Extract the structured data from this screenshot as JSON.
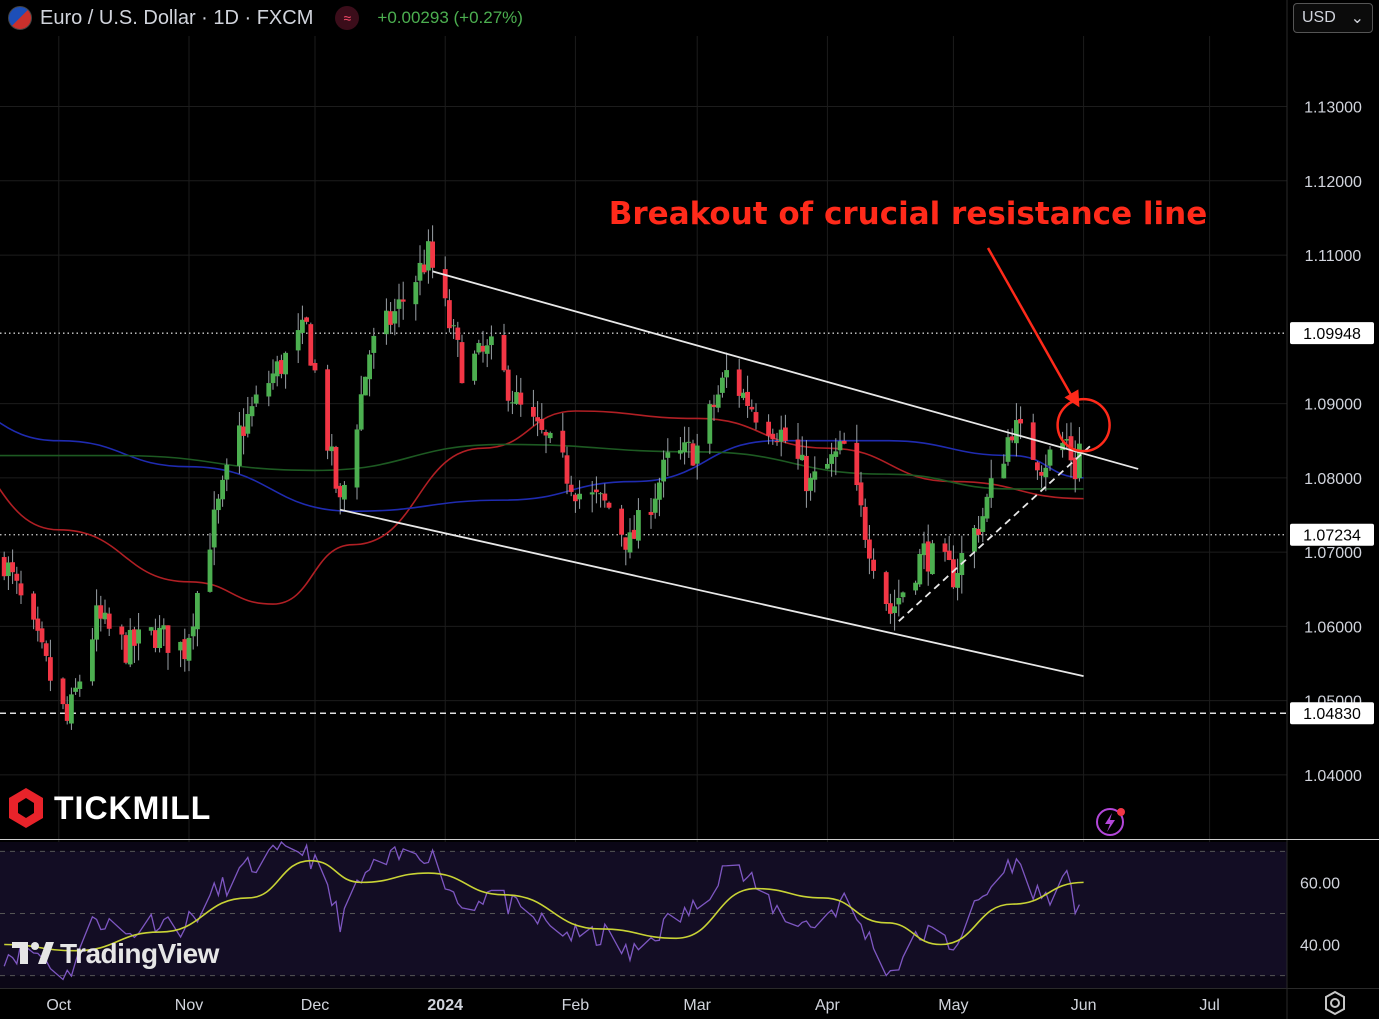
{
  "header": {
    "symbol": "Euro / U.S. Dollar · 1D · FXCM",
    "change": "+0.00293 (+0.27%)",
    "indicator_icon": "approx-icon"
  },
  "currency_selector": {
    "value": "USD",
    "arrow": "⌄"
  },
  "logos": {
    "tickmill": "TICKMILL",
    "tradingview": "TradingView"
  },
  "colors": {
    "up": "#4caf50",
    "down": "#f23645",
    "ma_red": "#b01f24",
    "ma_blue": "#1f2bb0",
    "ma_green": "#1d5a22",
    "rsi": "#7e57c2",
    "rsi_ma": "#c9d335",
    "annotation": "#ff2a1a"
  },
  "chart_data": [
    {
      "type": "candlestick",
      "title": "Euro / U.S. Dollar · 1D · FXCM",
      "xlabel": "",
      "ylabel": "",
      "x_ticks": [
        "Oct",
        "Nov",
        "Dec",
        "2024",
        "Feb",
        "Mar",
        "Apr",
        "May",
        "Jun",
        "Jul"
      ],
      "y_ticks": [
        "1.13000",
        "1.12000",
        "1.11000",
        "1.09000",
        "1.08000",
        "1.07000",
        "1.06000",
        "1.05000",
        "1.04000"
      ],
      "ylim": [
        1.0315,
        1.1395
      ],
      "price_labels": [
        "1.09948",
        "1.07234",
        "1.04830"
      ],
      "horizontal_levels": [
        {
          "value": 1.09948,
          "style": "dotted"
        },
        {
          "value": 1.07234,
          "style": "dotted"
        },
        {
          "value": 1.0483,
          "style": "dashed"
        }
      ],
      "close_path": [
        [
          "2023-09-18",
          1.069
        ],
        [
          "2023-09-25",
          1.059
        ],
        [
          "2023-10-03",
          1.047
        ],
        [
          "2023-10-10",
          1.061
        ],
        [
          "2023-10-17",
          1.057
        ],
        [
          "2023-10-24",
          1.059
        ],
        [
          "2023-10-31",
          1.057
        ],
        [
          "2023-11-06",
          1.072
        ],
        [
          "2023-11-13",
          1.086
        ],
        [
          "2023-11-20",
          1.093
        ],
        [
          "2023-11-29",
          1.1
        ],
        [
          "2023-12-07",
          1.076
        ],
        [
          "2023-12-14",
          1.097
        ],
        [
          "2023-12-21",
          1.103
        ],
        [
          "2023-12-28",
          1.11
        ],
        [
          "2024-01-05",
          1.095
        ],
        [
          "2024-01-12",
          1.097
        ],
        [
          "2024-01-19",
          1.089
        ],
        [
          "2024-01-26",
          1.084
        ],
        [
          "2024-02-02",
          1.078
        ],
        [
          "2024-02-09",
          1.076
        ],
        [
          "2024-02-14",
          1.071
        ],
        [
          "2024-02-23",
          1.082
        ],
        [
          "2024-03-01",
          1.084
        ],
        [
          "2024-03-08",
          1.094
        ],
        [
          "2024-03-15",
          1.089
        ],
        [
          "2024-03-21",
          1.086
        ],
        [
          "2024-03-28",
          1.079
        ],
        [
          "2024-04-05",
          1.084
        ],
        [
          "2024-04-10",
          1.073
        ],
        [
          "2024-04-16",
          1.062
        ],
        [
          "2024-04-24",
          1.07
        ],
        [
          "2024-05-01",
          1.067
        ],
        [
          "2024-05-08",
          1.075
        ],
        [
          "2024-05-15",
          1.087
        ],
        [
          "2024-05-22",
          1.082
        ],
        [
          "2024-05-28",
          1.085
        ],
        [
          "2024-05-30",
          1.081
        ],
        [
          "2024-06-01",
          1.0876
        ]
      ],
      "moving_averages": [
        {
          "color": "#b01f24",
          "points": [
            [
              "2023-09-01",
              1.0855
            ],
            [
              "2023-10-01",
              1.073
            ],
            [
              "2023-11-01",
              1.066
            ],
            [
              "2023-11-21",
              1.063
            ],
            [
              "2023-12-10",
              1.071
            ],
            [
              "2024-01-10",
              1.084
            ],
            [
              "2024-02-01",
              1.089
            ],
            [
              "2024-03-01",
              1.088
            ],
            [
              "2024-04-01",
              1.084
            ],
            [
              "2024-05-01",
              1.0795
            ],
            [
              "2024-06-01",
              1.0772
            ]
          ]
        },
        {
          "color": "#1f2bb0",
          "points": [
            [
              "2023-09-01",
              1.0905
            ],
            [
              "2023-10-01",
              1.085
            ],
            [
              "2023-11-01",
              1.0815
            ],
            [
              "2023-12-10",
              1.0755
            ],
            [
              "2024-01-15",
              1.077
            ],
            [
              "2024-02-15",
              1.0795
            ],
            [
              "2024-03-20",
              1.085
            ],
            [
              "2024-04-15",
              1.085
            ],
            [
              "2024-05-15",
              1.083
            ],
            [
              "2024-06-01",
              1.08
            ]
          ]
        },
        {
          "color": "#1d5a22",
          "points": [
            [
              "2023-09-01",
              1.083
            ],
            [
              "2023-10-15",
              1.083
            ],
            [
              "2023-12-01",
              1.081
            ],
            [
              "2024-01-15",
              1.0845
            ],
            [
              "2024-03-01",
              1.0835
            ],
            [
              "2024-04-15",
              1.0805
            ],
            [
              "2024-05-15",
              1.0785
            ],
            [
              "2024-06-01",
              1.0785
            ]
          ]
        }
      ],
      "trend_lines": [
        {
          "style": "solid",
          "from": [
            "2023-12-29",
            1.1078
          ],
          "to": [
            "2024-06-14",
            1.0812
          ]
        },
        {
          "style": "solid",
          "from": [
            "2023-12-07",
            1.0757
          ],
          "to": [
            "2024-06-01",
            1.0533
          ]
        },
        {
          "style": "dashed",
          "from": [
            "2024-04-18",
            1.0607
          ],
          "to": [
            "2024-06-03",
            1.0845
          ]
        }
      ],
      "annotations": [
        {
          "text": "Breakout of crucial resistance line",
          "arrow_to": [
            "2024-05-31",
            1.0895
          ],
          "circle_at": [
            "2024-06-01",
            1.0871
          ]
        }
      ]
    },
    {
      "type": "line",
      "title": "",
      "y_ticks": [
        "60.00",
        "40.00"
      ],
      "ylim": [
        26,
        73
      ],
      "bands": [
        70,
        50,
        30
      ],
      "series": [
        {
          "color": "#7e57c2",
          "points": [
            [
              "2023-09-18",
              37
            ],
            [
              "2023-09-25",
              38
            ],
            [
              "2023-10-03",
              30
            ],
            [
              "2023-10-10",
              49
            ],
            [
              "2023-10-17",
              43
            ],
            [
              "2023-10-24",
              48
            ],
            [
              "2023-10-31",
              46
            ],
            [
              "2023-11-06",
              55
            ],
            [
              "2023-11-13",
              63
            ],
            [
              "2023-11-20",
              68
            ],
            [
              "2023-11-29",
              71
            ],
            [
              "2023-12-07",
              48
            ],
            [
              "2023-12-14",
              64
            ],
            [
              "2023-12-21",
              68
            ],
            [
              "2023-12-28",
              70
            ],
            [
              "2024-01-05",
              52
            ],
            [
              "2024-01-12",
              57
            ],
            [
              "2024-01-19",
              50
            ],
            [
              "2024-01-26",
              46
            ],
            [
              "2024-02-02",
              42
            ],
            [
              "2024-02-09",
              43
            ],
            [
              "2024-02-14",
              36
            ],
            [
              "2024-02-23",
              47
            ],
            [
              "2024-03-01",
              52
            ],
            [
              "2024-03-08",
              67
            ],
            [
              "2024-03-15",
              58
            ],
            [
              "2024-03-21",
              50
            ],
            [
              "2024-03-28",
              46
            ],
            [
              "2024-04-05",
              54
            ],
            [
              "2024-04-10",
              44
            ],
            [
              "2024-04-16",
              31
            ],
            [
              "2024-04-24",
              44
            ],
            [
              "2024-05-01",
              40
            ],
            [
              "2024-05-08",
              55
            ],
            [
              "2024-05-15",
              67
            ],
            [
              "2024-05-22",
              55
            ],
            [
              "2024-05-28",
              60
            ],
            [
              "2024-05-30",
              52
            ],
            [
              "2024-06-01",
              59
            ]
          ]
        },
        {
          "color": "#c9d335",
          "points": [
            [
              "2023-09-18",
              40
            ],
            [
              "2023-10-05",
              38
            ],
            [
              "2023-10-25",
              44
            ],
            [
              "2023-11-15",
              55
            ],
            [
              "2023-11-30",
              67
            ],
            [
              "2023-12-12",
              60
            ],
            [
              "2023-12-28",
              63
            ],
            [
              "2024-01-15",
              56
            ],
            [
              "2024-02-07",
              45
            ],
            [
              "2024-02-25",
              42
            ],
            [
              "2024-03-15",
              58
            ],
            [
              "2024-03-31",
              55
            ],
            [
              "2024-04-15",
              47
            ],
            [
              "2024-04-28",
              40
            ],
            [
              "2024-05-15",
              53
            ],
            [
              "2024-06-01",
              60
            ]
          ]
        }
      ]
    }
  ]
}
